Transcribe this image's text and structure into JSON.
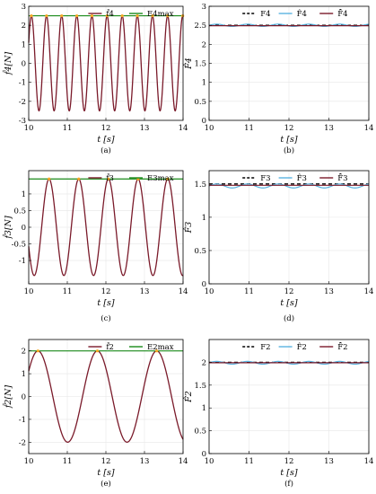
{
  "chart_data": [
    {
      "panel": "a",
      "caption": "(a)",
      "type": "line",
      "xlabel": "t [s]",
      "ylabel": "f̂4[N]",
      "xlim": [
        10,
        14
      ],
      "ylim": [
        -3,
        3
      ],
      "xticks": [
        10,
        11,
        12,
        13,
        14
      ],
      "yticks": [
        -3,
        -2,
        -1,
        0,
        1,
        2,
        3
      ],
      "grid": true,
      "legend": "top-right",
      "series": [
        {
          "name": "f̂4",
          "color": "#7a1a2a",
          "kind": "sinusoid",
          "amplitude": 2.5,
          "frequency_hz": 2.55,
          "phase_rad": 0.45,
          "x_range": [
            10,
            14
          ]
        },
        {
          "name": "E4max",
          "color": "#1a8a1a",
          "kind": "envelope",
          "values": [
            2.5,
            2.5
          ]
        }
      ],
      "peaks": {
        "color": "#f5a623",
        "value": 2.5
      }
    },
    {
      "panel": "b",
      "caption": "(b)",
      "type": "line",
      "xlabel": "t [s]",
      "ylabel": "F̂4",
      "xlim": [
        10,
        14
      ],
      "ylim": [
        0,
        3
      ],
      "xticks": [
        10,
        11,
        12,
        13,
        14
      ],
      "yticks": [
        0,
        0.5,
        1,
        1.5,
        2,
        2.5,
        3
      ],
      "grid": true,
      "legend": "top-right",
      "series": [
        {
          "name": "F4",
          "color": "#000000",
          "dashed": true,
          "values": [
            2.5,
            2.5
          ]
        },
        {
          "name": "F̂4",
          "color": "#5ab4e0",
          "kind": "ripple",
          "mean": 2.5,
          "amplitude": 0.03
        },
        {
          "name": "F̂̄4",
          "color": "#7a1a2a",
          "mean": 2.49
        }
      ]
    },
    {
      "panel": "c",
      "caption": "(c)",
      "type": "line",
      "xlabel": "t [s]",
      "ylabel": "f̂3[N]",
      "xlim": [
        10,
        14
      ],
      "ylim": [
        -1.7,
        1.7
      ],
      "xticks": [
        10,
        11,
        12,
        13,
        14
      ],
      "yticks": [
        -1,
        -0.5,
        0,
        0.5,
        1
      ],
      "grid": true,
      "legend": "top-right",
      "series": [
        {
          "name": "f̂3",
          "color": "#7a1a2a",
          "kind": "sinusoid",
          "amplitude": 1.45,
          "frequency_hz": 1.3,
          "phase_rad": 3.55,
          "x_range": [
            10,
            14
          ]
        },
        {
          "name": "E3max",
          "color": "#1a8a1a",
          "kind": "envelope",
          "values": [
            1.45,
            1.45
          ]
        }
      ],
      "peaks": {
        "color": "#f5a623",
        "value": 1.45
      }
    },
    {
      "panel": "d",
      "caption": "(d)",
      "type": "line",
      "xlabel": "t [s]",
      "ylabel": "F̂3",
      "xlim": [
        10,
        14
      ],
      "ylim": [
        0,
        1.7
      ],
      "xticks": [
        10,
        11,
        12,
        13,
        14
      ],
      "yticks": [
        0,
        0.5,
        1,
        1.5
      ],
      "grid": true,
      "legend": "top-right",
      "series": [
        {
          "name": "F3",
          "color": "#000000",
          "dashed": true,
          "values": [
            1.5,
            1.5
          ]
        },
        {
          "name": "F̂3",
          "color": "#5ab4e0",
          "kind": "ripple",
          "mean": 1.47,
          "amplitude": 0.03
        },
        {
          "name": "F̂̄3",
          "color": "#7a1a2a",
          "mean": 1.48
        }
      ]
    },
    {
      "panel": "e",
      "caption": "(e)",
      "type": "line",
      "xlabel": "t [s]",
      "ylabel": "f̂2[N]",
      "xlim": [
        10,
        14
      ],
      "ylim": [
        -2.5,
        2.5
      ],
      "xticks": [
        10,
        11,
        12,
        13,
        14
      ],
      "yticks": [
        -2,
        -1,
        0,
        1,
        2
      ],
      "grid": true,
      "legend": "top-right",
      "series": [
        {
          "name": "f̂2",
          "color": "#7a1a2a",
          "kind": "sinusoid",
          "amplitude": 2.0,
          "frequency_hz": 0.65,
          "phase_rad": 0.59,
          "x_range": [
            10,
            14
          ]
        },
        {
          "name": "E2max",
          "color": "#1a8a1a",
          "kind": "envelope",
          "values": [
            2.0,
            2.0
          ]
        }
      ],
      "peaks": {
        "color": "#f5a623",
        "value": 2.0
      }
    },
    {
      "panel": "f",
      "caption": "(f)",
      "type": "line",
      "xlabel": "t [s]",
      "ylabel": "F̂2",
      "xlim": [
        10,
        14
      ],
      "ylim": [
        0,
        2.5
      ],
      "xticks": [
        10,
        11,
        12,
        13,
        14
      ],
      "yticks": [
        0,
        0.5,
        1,
        1.5,
        2
      ],
      "grid": true,
      "legend": "top-right",
      "series": [
        {
          "name": "F2",
          "color": "#000000",
          "dashed": true,
          "values": [
            2.0,
            2.0
          ]
        },
        {
          "name": "F̂2",
          "color": "#5ab4e0",
          "kind": "ripple",
          "mean": 1.99,
          "amplitude": 0.03
        },
        {
          "name": "F̂̄2",
          "color": "#7a1a2a",
          "mean": 1.99
        }
      ]
    }
  ]
}
